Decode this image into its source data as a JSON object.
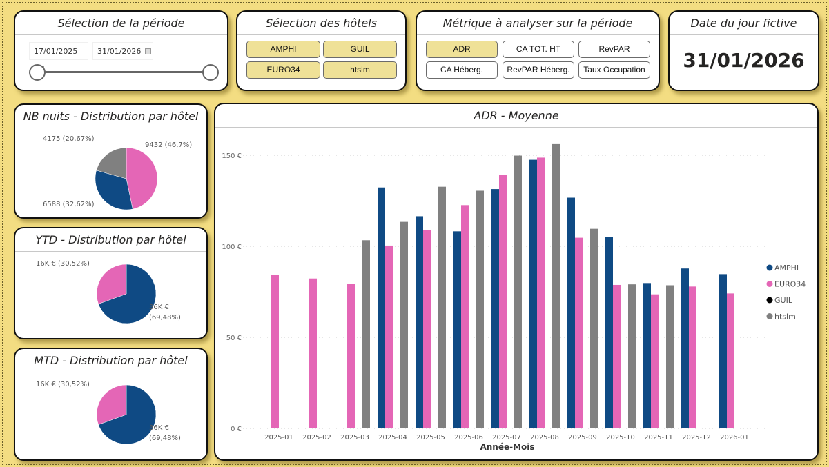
{
  "period": {
    "title": "Sélection de la période",
    "start": "17/01/2025",
    "end": "31/01/2026"
  },
  "hotels": {
    "title": "Sélection des hôtels",
    "items": [
      {
        "label": "AMPHI",
        "selected": true
      },
      {
        "label": "GUIL",
        "selected": true
      },
      {
        "label": "EURO34",
        "selected": true
      },
      {
        "label": "htslm",
        "selected": true
      }
    ]
  },
  "metric": {
    "title": "Métrique à analyser sur la période",
    "items": [
      {
        "label": "ADR",
        "selected": true
      },
      {
        "label": "CA TOT. HT",
        "selected": false
      },
      {
        "label": "RevPAR",
        "selected": false
      },
      {
        "label": "CA Héberg.",
        "selected": false
      },
      {
        "label": "RevPAR Héberg.",
        "selected": false
      },
      {
        "label": "Taux Occupation",
        "selected": false
      }
    ]
  },
  "today": {
    "title": "Date du jour fictive",
    "value": "31/01/2026"
  },
  "colors": {
    "AMPHI": "#0f4a84",
    "EURO34": "#e466b6",
    "GUIL": "#000000",
    "htslm": "#808080",
    "background": "#f3dd82"
  },
  "chart_data": [
    {
      "type": "pie",
      "title": "NB nuits - Distribution par hôtel",
      "slices": [
        {
          "series": "EURO34",
          "value": 9432,
          "label": "9432 (46,7%)"
        },
        {
          "series": "AMPHI",
          "value": 6588,
          "label": "6588 (32,62%)"
        },
        {
          "series": "htslm",
          "value": 4175,
          "label": "4175 (20,67%)"
        }
      ]
    },
    {
      "type": "pie",
      "title": "YTD - Distribution par hôtel",
      "slices": [
        {
          "series": "AMPHI",
          "value": 69.48,
          "label": "36K € (69,48%)",
          "label_line1": "36K €",
          "label_line2": "(69,48%)"
        },
        {
          "series": "EURO34",
          "value": 30.52,
          "label": "16K € (30,52%)"
        }
      ]
    },
    {
      "type": "pie",
      "title": "MTD - Distribution par hôtel",
      "slices": [
        {
          "series": "AMPHI",
          "value": 69.48,
          "label": "36K € (69,48%)",
          "label_line1": "36K €",
          "label_line2": "(69,48%)"
        },
        {
          "series": "EURO34",
          "value": 30.52,
          "label": "16K € (30,52%)"
        }
      ]
    },
    {
      "type": "bar",
      "title": "ADR - Moyenne",
      "xlabel": "Année-Mois",
      "ylabel": "",
      "ylim": [
        0,
        160
      ],
      "yticks": [
        {
          "v": 0,
          "label": "0 €"
        },
        {
          "v": 50,
          "label": "50 €"
        },
        {
          "v": 100,
          "label": "100 €"
        },
        {
          "v": 150,
          "label": "150 €"
        }
      ],
      "grid": true,
      "legend": "right",
      "categories": [
        "2025-01",
        "2025-02",
        "2025-03",
        "2025-04",
        "2025-05",
        "2025-06",
        "2025-07",
        "2025-08",
        "2025-09",
        "2025-10",
        "2025-11",
        "2025-12",
        "2026-01"
      ],
      "series": [
        {
          "name": "AMPHI",
          "values": [
            null,
            null,
            null,
            132.3,
            116.5,
            108.2,
            131.4,
            147.5,
            126.7,
            105.0,
            79.8,
            87.8,
            84.7
          ]
        },
        {
          "name": "EURO34",
          "values": [
            84.2,
            82.3,
            79.4,
            100.4,
            108.8,
            122.6,
            139.1,
            148.7,
            104.7,
            78.8,
            73.6,
            77.9,
            74.1
          ]
        },
        {
          "name": "GUIL",
          "values": [
            null,
            null,
            null,
            null,
            null,
            null,
            null,
            null,
            null,
            null,
            null,
            null,
            null
          ]
        },
        {
          "name": "htslm",
          "values": [
            null,
            null,
            103.3,
            113.4,
            132.7,
            130.5,
            149.8,
            156.1,
            109.6,
            79.1,
            78.6,
            null,
            null
          ]
        }
      ]
    }
  ]
}
